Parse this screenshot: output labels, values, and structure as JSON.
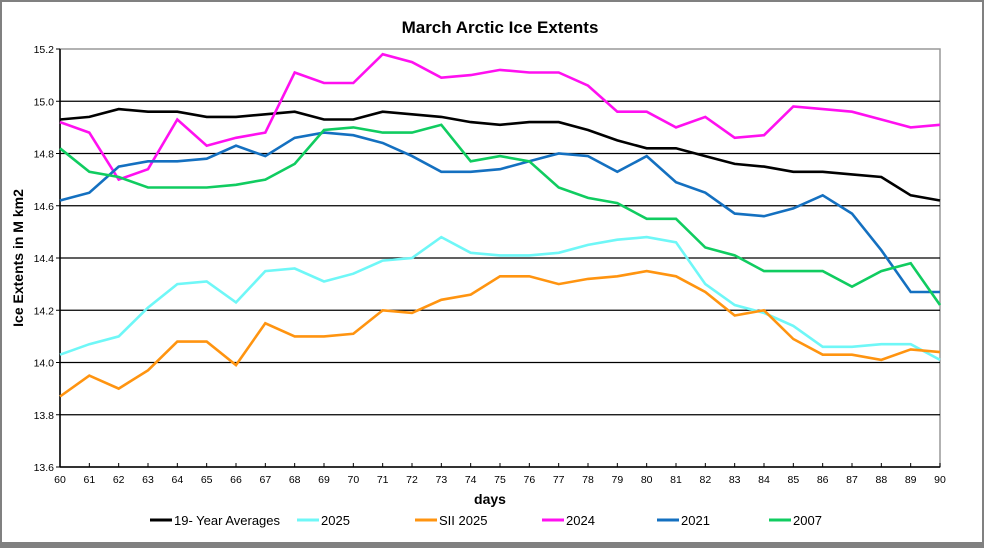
{
  "chart_data": {
    "type": "line",
    "title": "March Arctic Ice Extents",
    "xlabel": "days",
    "ylabel": "Ice Extents in M km2",
    "xlim": [
      60,
      90
    ],
    "ylim": [
      13.6,
      15.2
    ],
    "y_ticks": [
      "13.6",
      "13.8",
      "14.0",
      "14.2",
      "14.4",
      "14.6",
      "14.8",
      "15.0",
      "15.2"
    ],
    "x_ticks": [
      "60",
      "61",
      "62",
      "63",
      "64",
      "65",
      "66",
      "67",
      "68",
      "69",
      "70",
      "71",
      "72",
      "73",
      "74",
      "75",
      "76",
      "77",
      "78",
      "79",
      "80",
      "81",
      "82",
      "83",
      "84",
      "85",
      "86",
      "87",
      "88",
      "89",
      "90"
    ],
    "grid": "horizontal",
    "legend_position": "bottom",
    "x": [
      60,
      61,
      62,
      63,
      64,
      65,
      66,
      67,
      68,
      69,
      70,
      71,
      72,
      73,
      74,
      75,
      76,
      77,
      78,
      79,
      80,
      81,
      82,
      83,
      84,
      85,
      86,
      87,
      88,
      89,
      90
    ],
    "series": [
      {
        "name": "19- Year Averages",
        "color": "#000000",
        "values": [
          14.93,
          14.94,
          14.97,
          14.96,
          14.96,
          14.94,
          14.94,
          14.95,
          14.96,
          14.93,
          14.93,
          14.96,
          14.95,
          14.94,
          14.92,
          14.91,
          14.92,
          14.92,
          14.89,
          14.85,
          14.82,
          14.82,
          14.79,
          14.76,
          14.75,
          14.73,
          14.73,
          14.72,
          14.71,
          14.64,
          14.62
        ]
      },
      {
        "name": "2025",
        "color": "#6ff7f7",
        "values": [
          14.03,
          14.07,
          14.1,
          14.21,
          14.3,
          14.31,
          14.23,
          14.35,
          14.36,
          14.31,
          14.34,
          14.39,
          14.4,
          14.48,
          14.42,
          14.41,
          14.41,
          14.42,
          14.45,
          14.47,
          14.48,
          14.46,
          14.3,
          14.22,
          14.19,
          14.14,
          14.06,
          14.06,
          14.07,
          14.07,
          14.01
        ]
      },
      {
        "name": "SII 2025",
        "color": "#ff9410",
        "values": [
          13.87,
          13.95,
          13.9,
          13.97,
          14.08,
          14.08,
          13.99,
          14.15,
          14.1,
          14.1,
          14.11,
          14.2,
          14.19,
          14.24,
          14.26,
          14.33,
          14.33,
          14.3,
          14.32,
          14.33,
          14.35,
          14.33,
          14.27,
          14.18,
          14.2,
          14.09,
          14.03,
          14.03,
          14.01,
          14.05,
          14.04
        ]
      },
      {
        "name": "2024",
        "color": "#ff10f0",
        "values": [
          14.92,
          14.88,
          14.7,
          14.74,
          14.93,
          14.83,
          14.86,
          14.88,
          15.11,
          15.07,
          15.07,
          15.18,
          15.15,
          15.09,
          15.1,
          15.12,
          15.11,
          15.11,
          15.06,
          14.96,
          14.96,
          14.9,
          14.94,
          14.86,
          14.87,
          14.98,
          14.97,
          14.96,
          14.93,
          14.9,
          14.91
        ]
      },
      {
        "name": "2021",
        "color": "#1470c0",
        "values": [
          14.62,
          14.65,
          14.75,
          14.77,
          14.77,
          14.78,
          14.83,
          14.79,
          14.86,
          14.88,
          14.87,
          14.84,
          14.79,
          14.73,
          14.73,
          14.74,
          14.77,
          14.8,
          14.79,
          14.73,
          14.79,
          14.69,
          14.65,
          14.57,
          14.56,
          14.59,
          14.64,
          14.57,
          14.43,
          14.27,
          14.27
        ]
      },
      {
        "name": "2007",
        "color": "#10cc60",
        "values": [
          14.82,
          14.73,
          14.71,
          14.67,
          14.67,
          14.67,
          14.68,
          14.7,
          14.76,
          14.89,
          14.9,
          14.88,
          14.88,
          14.91,
          14.77,
          14.79,
          14.77,
          14.67,
          14.63,
          14.61,
          14.55,
          14.55,
          14.44,
          14.41,
          14.35,
          14.35,
          14.35,
          14.29,
          14.35,
          14.38,
          14.22
        ]
      }
    ]
  }
}
